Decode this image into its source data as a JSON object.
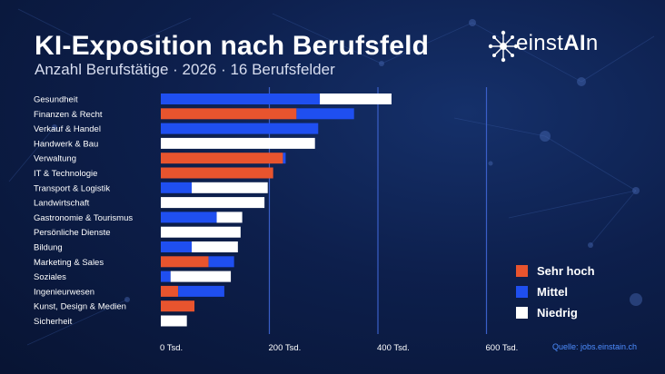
{
  "header": {
    "title": "KI-Exposition nach Berufsfeld",
    "subtitle": "Anzahl Berufstätige · 2026 · 16 Berufsfelder"
  },
  "brand": {
    "name_part1": "einst",
    "name_highlight": "AI",
    "name_part2": "n",
    "icon": "network-node-icon"
  },
  "source": "Quelle: jobs.einstain.ch",
  "colors": {
    "sehr_hoch": "#e8542e",
    "mittel": "#1f4ff0",
    "niedrig": "#ffffff",
    "gridline": "#3a5fc8",
    "background": "#0d1f4c"
  },
  "chart_data": {
    "type": "bar",
    "orientation": "horizontal",
    "stacked": true,
    "xlim": [
      0,
      600
    ],
    "xticks": [
      0,
      200,
      400,
      600
    ],
    "xtick_labels": [
      "0 Tsd.",
      "200 Tsd.",
      "400 Tsd.",
      "600 Tsd."
    ],
    "grid": true,
    "legend_position": "right",
    "categories": [
      "Gesundheit",
      "Finanzen & Recht",
      "Verkauf & Handel",
      "Handwerk & Bau",
      "Verwaltung",
      "IT & Technologie",
      "Transport & Logistik",
      "Landwirtschaft",
      "Gastronomie & Tourismus",
      "Persönliche Dienste",
      "Bildung",
      "Marketing & Sales",
      "Soziales",
      "Ingenieurwesen",
      "Kunst, Design & Medien",
      "Sicherheit"
    ],
    "series": [
      {
        "name": "Sehr hoch",
        "color": "#e8542e",
        "values": [
          0,
          250,
          0,
          0,
          225,
          207,
          0,
          0,
          0,
          0,
          0,
          88,
          0,
          32,
          62,
          0
        ]
      },
      {
        "name": "Mittel",
        "color": "#1f4ff0",
        "values": [
          293,
          106,
          290,
          0,
          5,
          0,
          57,
          0,
          103,
          0,
          57,
          47,
          18,
          85,
          0,
          0
        ]
      },
      {
        "name": "Niedrig",
        "color": "#ffffff",
        "values": [
          132,
          0,
          0,
          284,
          0,
          0,
          140,
          191,
          47,
          147,
          85,
          0,
          111,
          0,
          0,
          48
        ]
      }
    ]
  }
}
